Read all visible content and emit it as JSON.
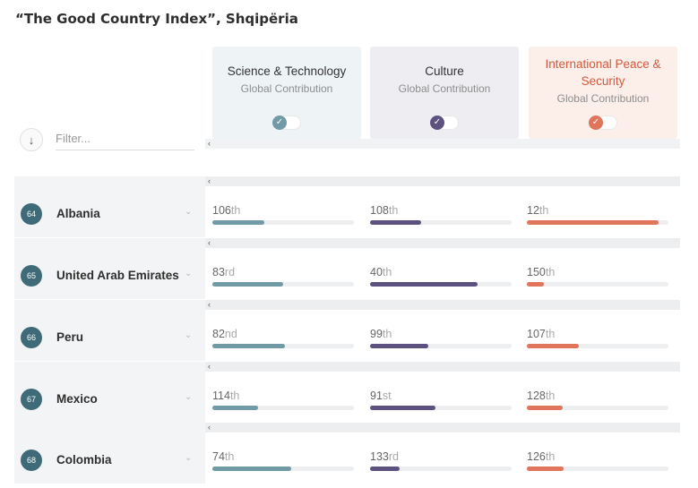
{
  "title": "“The Good Country Index”, Shqipëria",
  "controls": {
    "sort_icon": "arrow-down-icon",
    "sort_glyph": "↓",
    "filter_placeholder": "Filter..."
  },
  "categories": [
    {
      "name": "Science & Technology",
      "subtitle": "Global Contribution",
      "accent": "#6f9aa6",
      "bg": "#eef3f6",
      "enabled": true
    },
    {
      "name": "Culture",
      "subtitle": "Global Contribution",
      "accent": "#5d527f",
      "bg": "#eeedf1",
      "enabled": true
    },
    {
      "name": "International Peace & Security",
      "subtitle": "Global Contribution",
      "accent": "#e0755b",
      "bg": "#fcefea",
      "enabled": true
    }
  ],
  "scroll_glyph": "‹",
  "chevron_glyph": "⌄",
  "countries": [
    {
      "rank": "64",
      "name": "Albania",
      "cells": [
        {
          "num": "106",
          "suffix": "th",
          "level": 0.37
        },
        {
          "num": "108",
          "suffix": "th",
          "level": 0.36
        },
        {
          "num": "12",
          "suffix": "th",
          "level": 0.93
        }
      ]
    },
    {
      "rank": "65",
      "name": "United Arab Emirates",
      "cells": [
        {
          "num": "83",
          "suffix": "rd",
          "level": 0.5
        },
        {
          "num": "40",
          "suffix": "th",
          "level": 0.76
        },
        {
          "num": "150",
          "suffix": "th",
          "level": 0.12
        }
      ]
    },
    {
      "rank": "66",
      "name": "Peru",
      "cells": [
        {
          "num": "82",
          "suffix": "nd",
          "level": 0.51
        },
        {
          "num": "99",
          "suffix": "th",
          "level": 0.41
        },
        {
          "num": "107",
          "suffix": "th",
          "level": 0.37
        }
      ]
    },
    {
      "rank": "67",
      "name": "Mexico",
      "cells": [
        {
          "num": "114",
          "suffix": "th",
          "level": 0.32
        },
        {
          "num": "91",
          "suffix": "st",
          "level": 0.46
        },
        {
          "num": "128",
          "suffix": "th",
          "level": 0.25
        }
      ]
    },
    {
      "rank": "68",
      "name": "Colombia",
      "cells": [
        {
          "num": "74",
          "suffix": "th",
          "level": 0.56
        },
        {
          "num": "133",
          "suffix": "rd",
          "level": 0.21
        },
        {
          "num": "126",
          "suffix": "th",
          "level": 0.26
        }
      ]
    }
  ]
}
